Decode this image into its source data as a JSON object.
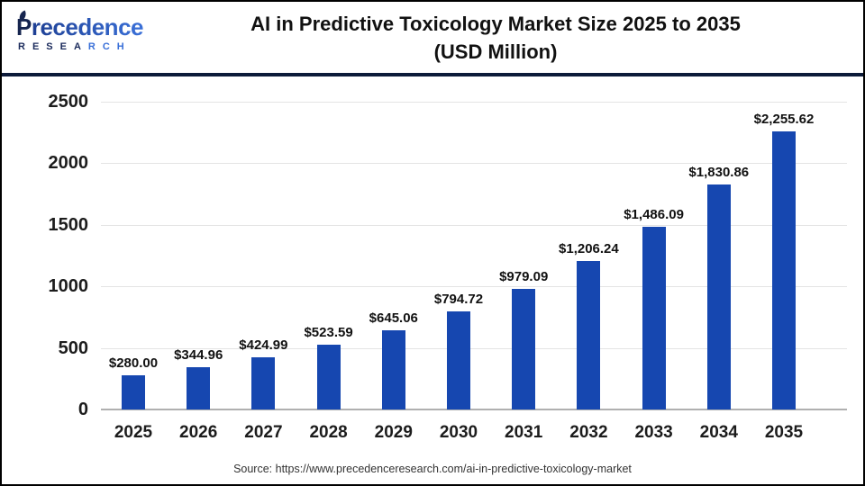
{
  "logo": {
    "initial": "P",
    "rest": "recedence",
    "subtitle_dark": "RESEA",
    "subtitle_light": "RCH"
  },
  "header": {
    "title_line1": "AI in Predictive Toxicology Market Size 2025 to 2035",
    "title_line2": "(USD Million)"
  },
  "chart_data": {
    "type": "bar",
    "title": "AI in Predictive Toxicology Market Size 2025 to 2035 (USD Million)",
    "categories": [
      "2025",
      "2026",
      "2027",
      "2028",
      "2029",
      "2030",
      "2031",
      "2032",
      "2033",
      "2034",
      "2035"
    ],
    "values": [
      280.0,
      344.96,
      424.99,
      523.59,
      645.06,
      794.72,
      979.09,
      1206.24,
      1486.09,
      1830.86,
      2255.62
    ],
    "value_labels": [
      "$280.00",
      "$344.96",
      "$424.99",
      "$523.59",
      "$645.06",
      "$794.72",
      "$979.09",
      "$1,206.24",
      "$1,486.09",
      "$1,830.86",
      "$2,255.62"
    ],
    "xlabel": "",
    "ylabel": "",
    "ylim": [
      0,
      2500
    ],
    "yticks": [
      0,
      500,
      1000,
      1500,
      2000,
      2500
    ],
    "grid": true,
    "legend": "none",
    "bar_color": "#1647b0"
  },
  "footer": {
    "source": "Source: https://www.precedenceresearch.com/ai-in-predictive-toxicology-market"
  },
  "colors": {
    "bar": "#1647b0",
    "separator": "#0d1b3a",
    "gridline": "#e4e4e4",
    "axis_line": "#b0b0b0",
    "title_text": "#111111",
    "logo_navy": "#16254f",
    "logo_blue": "#3a70d8",
    "outer_border": "#000000"
  }
}
